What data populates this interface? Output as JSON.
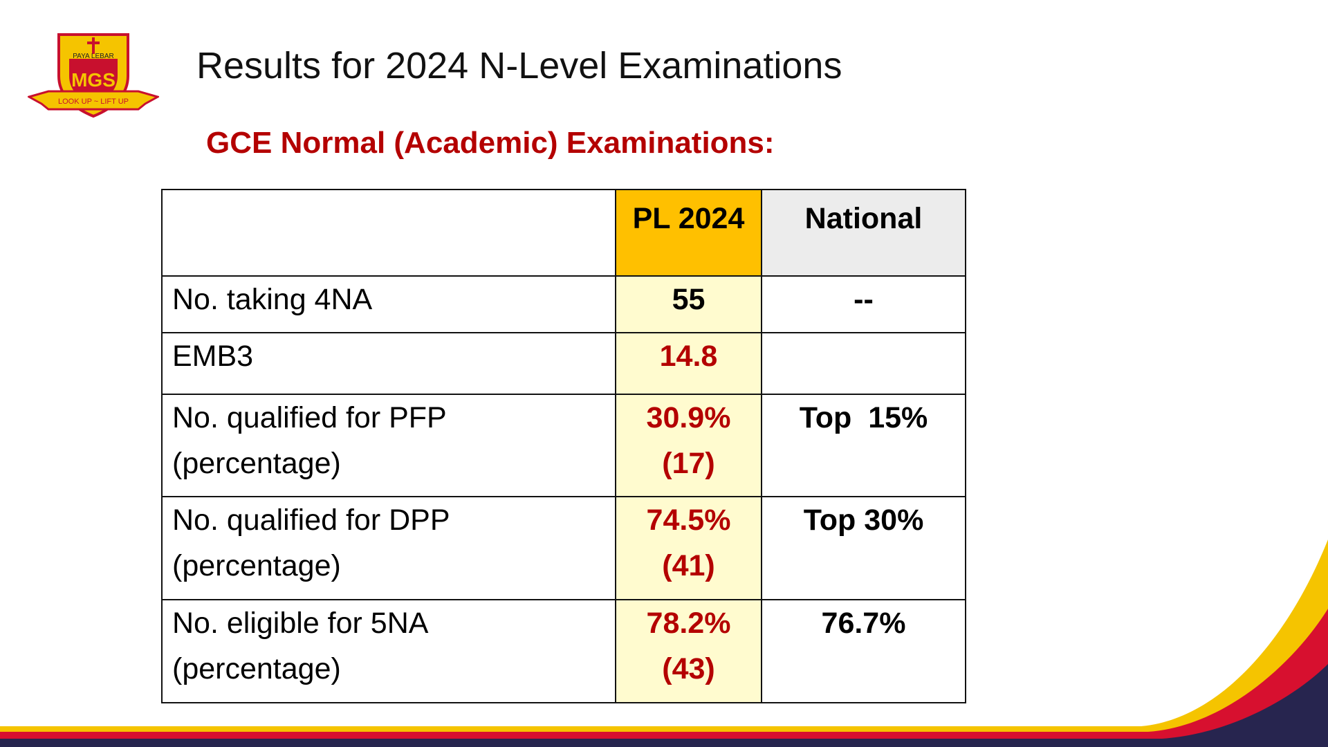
{
  "logo": {
    "top": "PAYA LEBAR",
    "initials": "MGS",
    "motto": "LOOK UP ~ LIFT UP"
  },
  "header": {
    "title": "Results for 2024 N-Level Examinations",
    "subtitle": "GCE Normal (Academic) Examinations:"
  },
  "table": {
    "columns": {
      "pl": "PL 2024",
      "national": "National"
    },
    "rows": [
      {
        "label": [
          "No. taking 4NA"
        ],
        "pl": [
          "55"
        ],
        "national": [
          "--"
        ]
      },
      {
        "label": [
          "EMB3"
        ],
        "pl": [
          "14.8"
        ]
      },
      {
        "label": [
          "No. qualified for PFP",
          "(percentage)"
        ],
        "pl": [
          "30.9%",
          "(17)"
        ],
        "national": [
          "Top  15%"
        ]
      },
      {
        "label": [
          "No. qualified for DPP",
          "(percentage)"
        ],
        "pl": [
          "74.5%",
          "(41)"
        ],
        "national": [
          "Top 30%"
        ]
      },
      {
        "label": [
          "No. eligible for 5NA",
          "(percentage)"
        ],
        "pl": [
          "78.2%",
          "(43)"
        ],
        "national": [
          "76.7%"
        ]
      }
    ]
  }
}
